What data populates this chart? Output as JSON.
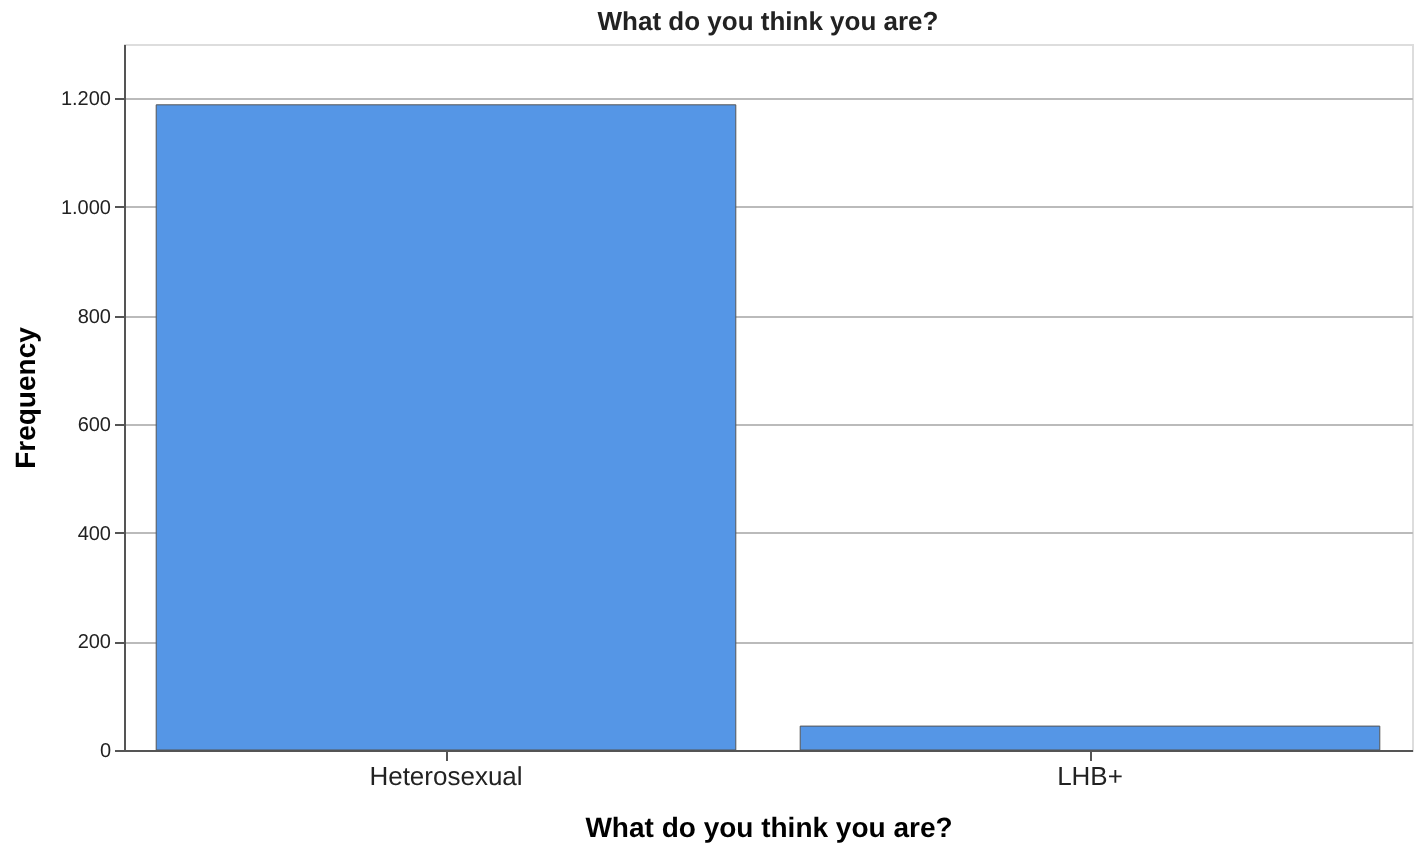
{
  "chart_data": {
    "type": "bar",
    "title": "What do you think you are?",
    "xlabel": "What do you think you are?",
    "ylabel": "Frequency",
    "categories": [
      "Heterosexual",
      "LHB+"
    ],
    "values": [
      1188,
      44
    ],
    "color": "#5596e6",
    "ylim": [
      0,
      1300
    ],
    "yticks": [
      0,
      200,
      400,
      600,
      800,
      {
        "value": 1000,
        "label": "1.000"
      },
      {
        "value": 1200,
        "label": "1.200"
      }
    ],
    "grid": "y"
  }
}
